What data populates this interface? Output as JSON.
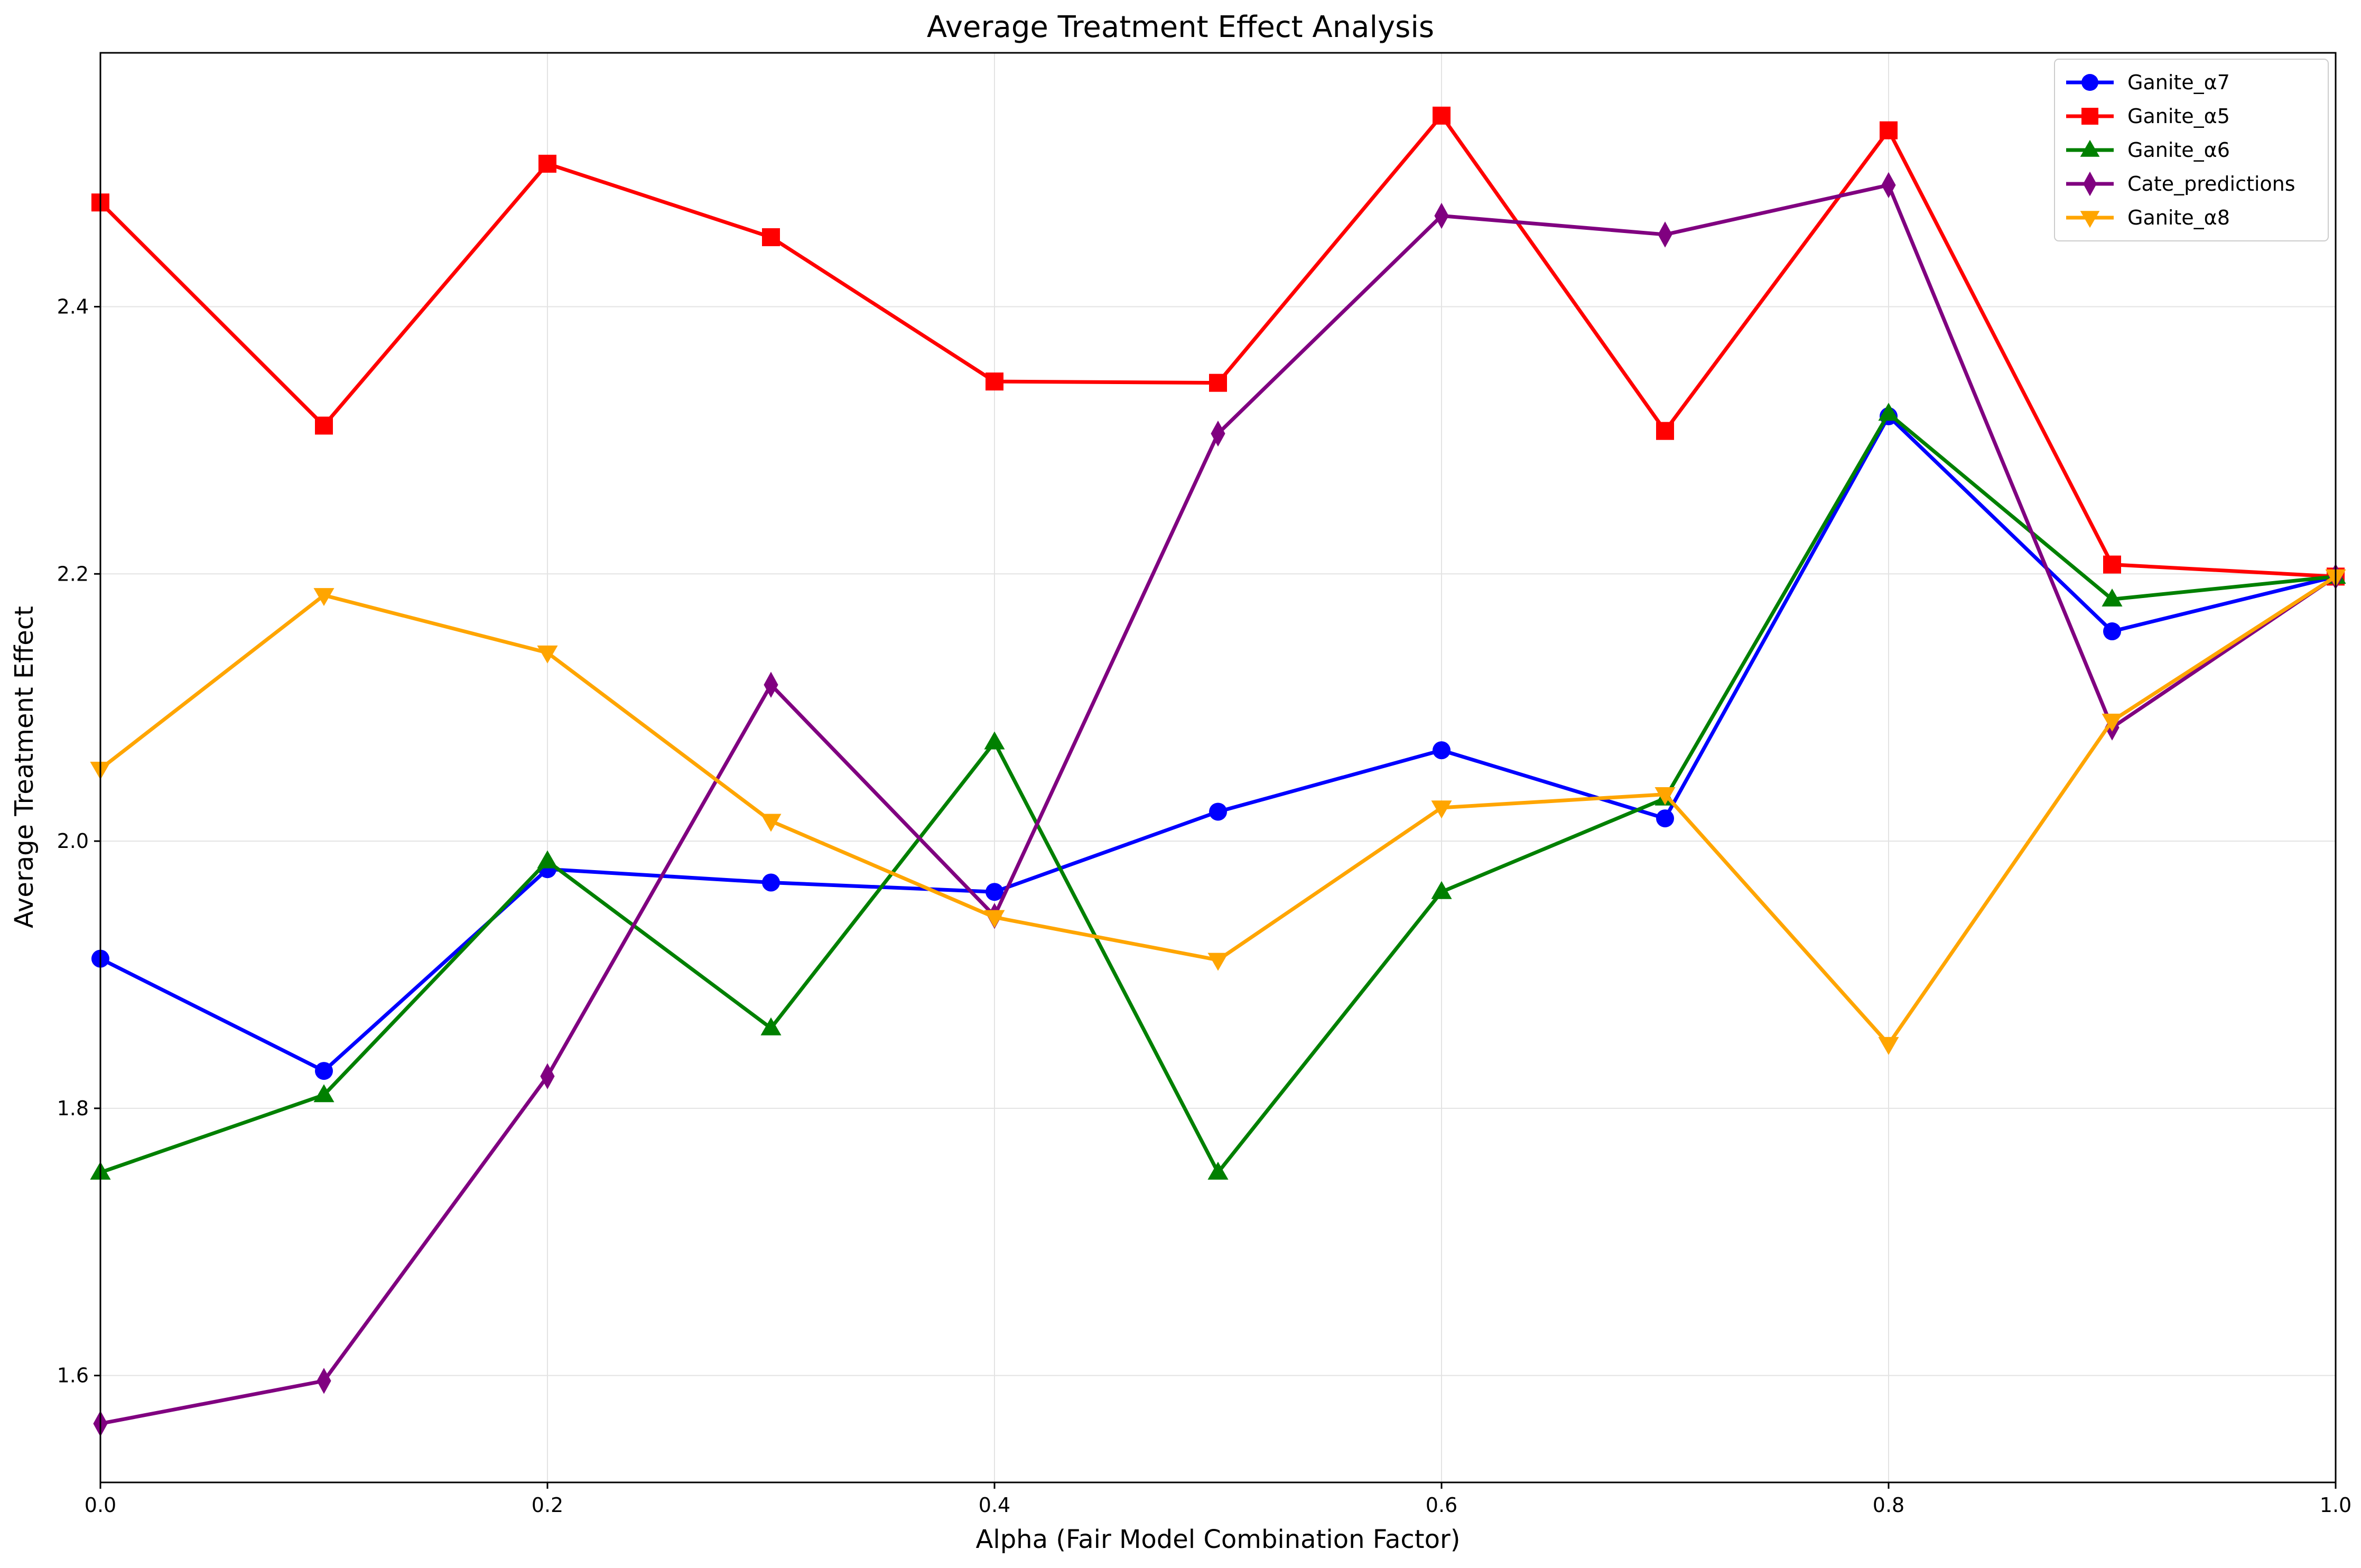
{
  "chart_data": {
    "type": "line",
    "title": "Average Treatment Effect Analysis",
    "xlabel": "Alpha (Fair Model Combination Factor)",
    "ylabel": "Average Treatment Effect",
    "xlim": [
      0,
      1
    ],
    "ylim": [
      1.52,
      2.59
    ],
    "x_ticks": [
      0.0,
      0.2,
      0.4,
      0.6,
      0.8,
      1.0
    ],
    "x_tick_labels": [
      "0.0",
      "0.2",
      "0.4",
      "0.6",
      "0.8",
      "1.0"
    ],
    "y_ticks": [
      1.6,
      1.8,
      2.0,
      2.2,
      2.4
    ],
    "y_tick_labels": [
      "1.6",
      "1.8",
      "2.0",
      "2.2",
      "2.4"
    ],
    "grid": true,
    "legend_position": "top-right",
    "x": [
      0.0,
      0.1,
      0.2,
      0.3,
      0.4,
      0.5,
      0.6,
      0.7,
      0.8,
      0.9,
      1.0
    ],
    "series": [
      {
        "name": "Ganite_α7",
        "color": "#0000ff",
        "marker": "circle",
        "values": [
          1.912,
          1.828,
          1.979,
          1.969,
          1.962,
          2.022,
          2.068,
          2.017,
          2.318,
          2.157,
          2.198
        ]
      },
      {
        "name": "Ganite_α5",
        "color": "#ff0000",
        "marker": "square",
        "values": [
          2.478,
          2.311,
          2.507,
          2.452,
          2.344,
          2.343,
          2.543,
          2.307,
          2.532,
          2.207,
          2.198
        ]
      },
      {
        "name": "Ganite_α6",
        "color": "#008000",
        "marker": "triangle-up",
        "values": [
          1.752,
          1.81,
          1.985,
          1.86,
          2.074,
          1.752,
          1.962,
          2.032,
          2.32,
          2.181,
          2.198
        ]
      },
      {
        "name": "Cate_predictions",
        "color": "#800080",
        "marker": "diamond",
        "values": [
          1.564,
          1.596,
          1.824,
          2.117,
          1.944,
          2.305,
          2.468,
          2.454,
          2.491,
          2.085,
          2.198
        ]
      },
      {
        "name": "Ganite_α8",
        "color": "#ffa500",
        "marker": "triangle-down",
        "values": [
          2.054,
          2.184,
          2.141,
          2.015,
          1.943,
          1.911,
          2.025,
          2.035,
          1.848,
          2.09,
          2.198
        ]
      }
    ]
  }
}
